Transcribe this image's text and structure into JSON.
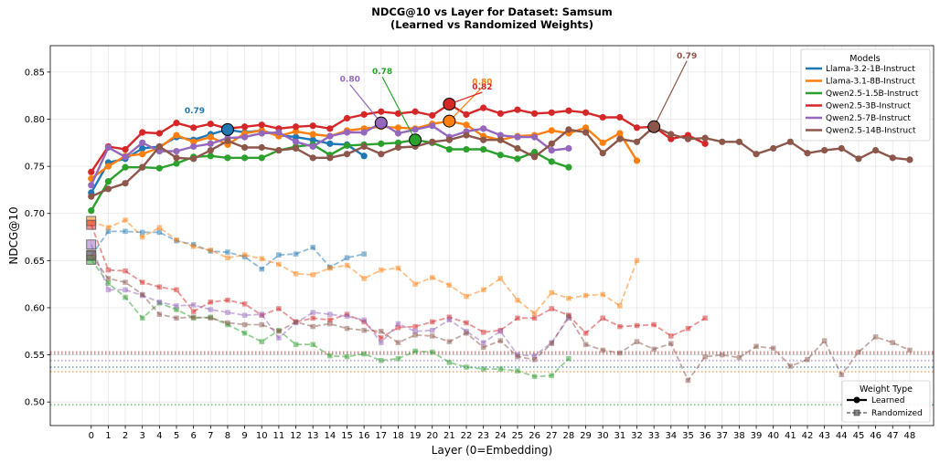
{
  "chart_data": {
    "type": "line",
    "title": "NDCG@10 vs Layer for Dataset: Samsum",
    "subtitle": "(Learned vs Randomized Weights)",
    "xlabel": "Layer (0=Embedding)",
    "ylabel": "NDCG@10",
    "xlim": [
      -2.4,
      49.4
    ],
    "ylim": [
      0.475,
      0.878
    ],
    "xticks": [
      0,
      1,
      2,
      3,
      4,
      5,
      6,
      7,
      8,
      9,
      10,
      11,
      12,
      13,
      14,
      15,
      16,
      17,
      18,
      19,
      20,
      21,
      22,
      23,
      24,
      25,
      26,
      27,
      28,
      29,
      30,
      31,
      32,
      33,
      34,
      35,
      36,
      37,
      38,
      39,
      40,
      41,
      42,
      43,
      44,
      45,
      46,
      47,
      48
    ],
    "yticks": [
      0.5,
      0.55,
      0.6,
      0.65,
      0.7,
      0.75,
      0.8,
      0.85
    ],
    "ytick_labels": [
      "0.50",
      "0.55",
      "0.60",
      "0.65",
      "0.70",
      "0.75",
      "0.80",
      "0.85"
    ],
    "grid": true,
    "legend_models": {
      "title": "Models",
      "placement": "top-right",
      "entries": [
        "Llama-3.2-1B-Instruct",
        "Llama-3.1-8B-Instruct",
        "Qwen2.5-1.5B-Instruct",
        "Qwen2.5-3B-Instruct",
        "Qwen2.5-7B-Instruct",
        "Qwen2.5-14B-Instruct"
      ]
    },
    "legend_weights": {
      "title": "Weight Type",
      "placement": "bottom-right",
      "entries": [
        "Learned",
        "Randomized"
      ]
    },
    "series": [
      {
        "name": "Llama-3.2-1B-Instruct",
        "color": "#1f77b4",
        "learned": [
          0.722,
          0.754,
          0.758,
          0.769,
          0.771,
          0.781,
          0.778,
          0.784,
          0.789,
          0.786,
          0.788,
          0.783,
          0.781,
          0.778,
          0.774,
          0.773,
          0.761
        ],
        "randomized": [
          0.655,
          0.681,
          0.681,
          0.68,
          0.68,
          0.671,
          0.667,
          0.66,
          0.659,
          0.654,
          0.641,
          0.656,
          0.657,
          0.664,
          0.643,
          0.653,
          0.657
        ],
        "baseline": 0.537,
        "peak": {
          "layer": 8,
          "value": 0.789,
          "label": "0.79"
        }
      },
      {
        "name": "Llama-3.1-8B-Instruct",
        "color": "#ff7f0e",
        "learned": [
          0.737,
          0.75,
          0.761,
          0.763,
          0.77,
          0.783,
          0.776,
          0.781,
          0.773,
          0.785,
          0.788,
          0.782,
          0.787,
          0.784,
          0.782,
          0.788,
          0.79,
          0.792,
          0.791,
          0.79,
          0.795,
          0.798,
          0.794,
          0.782,
          0.778,
          0.782,
          0.783,
          0.788,
          0.785,
          0.791,
          0.775,
          0.785,
          0.756
        ],
        "randomized": [
          0.692,
          0.685,
          0.693,
          0.675,
          0.685,
          0.672,
          0.665,
          0.661,
          0.653,
          0.656,
          0.652,
          0.646,
          0.636,
          0.635,
          0.642,
          0.645,
          0.631,
          0.64,
          0.642,
          0.625,
          0.632,
          0.624,
          0.612,
          0.619,
          0.631,
          0.608,
          0.594,
          0.616,
          0.61,
          0.613,
          0.614,
          0.602,
          0.65
        ],
        "baseline": 0.532,
        "peak": {
          "layer": 21,
          "value": 0.798,
          "label": "0.80"
        }
      },
      {
        "name": "Qwen2.5-1.5B-Instruct",
        "color": "#2ca02c",
        "learned": [
          0.703,
          0.734,
          0.749,
          0.749,
          0.748,
          0.753,
          0.76,
          0.761,
          0.759,
          0.759,
          0.759,
          0.767,
          0.771,
          0.773,
          0.762,
          0.772,
          0.773,
          0.774,
          0.775,
          0.778,
          0.775,
          0.768,
          0.768,
          0.768,
          0.762,
          0.758,
          0.765,
          0.755,
          0.749
        ],
        "randomized": [
          0.651,
          0.626,
          0.611,
          0.589,
          0.605,
          0.598,
          0.589,
          0.59,
          0.582,
          0.573,
          0.564,
          0.576,
          0.561,
          0.561,
          0.549,
          0.548,
          0.551,
          0.544,
          0.546,
          0.554,
          0.553,
          0.542,
          0.537,
          0.535,
          0.535,
          0.533,
          0.527,
          0.528,
          0.546
        ],
        "baseline": 0.497,
        "peak": {
          "layer": 19,
          "value": 0.778,
          "label": "0.78"
        }
      },
      {
        "name": "Qwen2.5-3B-Instruct",
        "color": "#d62728",
        "learned": [
          0.744,
          0.771,
          0.768,
          0.786,
          0.785,
          0.796,
          0.791,
          0.795,
          0.79,
          0.792,
          0.794,
          0.79,
          0.792,
          0.793,
          0.79,
          0.801,
          0.805,
          0.808,
          0.806,
          0.808,
          0.804,
          0.816,
          0.805,
          0.812,
          0.806,
          0.81,
          0.806,
          0.807,
          0.809,
          0.807,
          0.802,
          0.802,
          0.791,
          0.792,
          0.779,
          0.783,
          0.774
        ],
        "randomized": [
          0.688,
          0.64,
          0.639,
          0.627,
          0.622,
          0.619,
          0.596,
          0.606,
          0.608,
          0.604,
          0.592,
          0.599,
          0.585,
          0.589,
          0.587,
          0.593,
          0.585,
          0.568,
          0.579,
          0.58,
          0.585,
          0.59,
          0.584,
          0.574,
          0.576,
          0.589,
          0.589,
          0.599,
          0.592,
          0.573,
          0.589,
          0.58,
          0.581,
          0.582,
          0.57,
          0.578,
          0.589
        ],
        "baseline": 0.553,
        "peak": {
          "layer": 21,
          "value": 0.816,
          "label": "0.82"
        }
      },
      {
        "name": "Qwen2.5-7B-Instruct",
        "color": "#9467bd",
        "learned": [
          0.73,
          0.77,
          0.76,
          0.775,
          0.766,
          0.766,
          0.771,
          0.774,
          0.78,
          0.781,
          0.785,
          0.786,
          0.776,
          0.771,
          0.782,
          0.786,
          0.786,
          0.796,
          0.785,
          0.789,
          0.793,
          0.781,
          0.787,
          0.79,
          0.783,
          0.781,
          0.781,
          0.767,
          0.769
        ],
        "randomized": [
          0.667,
          0.619,
          0.619,
          0.613,
          0.606,
          0.602,
          0.603,
          0.598,
          0.595,
          0.592,
          0.593,
          0.568,
          0.584,
          0.595,
          0.593,
          0.591,
          0.587,
          0.563,
          0.583,
          0.575,
          0.576,
          0.587,
          0.575,
          0.563,
          0.575,
          0.55,
          0.549,
          0.563,
          0.589
        ],
        "baseline": 0.544,
        "peak": {
          "layer": 17,
          "value": 0.796,
          "label": "0.80"
        }
      },
      {
        "name": "Qwen2.5-14B-Instruct",
        "color": "#8c564b",
        "learned": [
          0.718,
          0.726,
          0.732,
          0.749,
          0.771,
          0.759,
          0.758,
          0.767,
          0.777,
          0.77,
          0.77,
          0.767,
          0.769,
          0.759,
          0.759,
          0.763,
          0.771,
          0.763,
          0.77,
          0.771,
          0.776,
          0.778,
          0.783,
          0.778,
          0.778,
          0.769,
          0.76,
          0.774,
          0.789,
          0.786,
          0.764,
          0.779,
          0.776,
          0.792,
          0.784,
          0.779,
          0.78,
          0.776,
          0.776,
          0.763,
          0.769,
          0.776,
          0.764,
          0.767,
          0.769,
          0.758,
          0.767,
          0.759,
          0.757
        ],
        "randomized": [
          0.656,
          0.631,
          0.627,
          0.614,
          0.593,
          0.589,
          0.59,
          0.589,
          0.584,
          0.582,
          0.582,
          0.575,
          0.585,
          0.58,
          0.583,
          0.578,
          0.576,
          0.575,
          0.563,
          0.571,
          0.57,
          0.564,
          0.573,
          0.558,
          0.565,
          0.548,
          0.545,
          0.562,
          0.591,
          0.561,
          0.555,
          0.552,
          0.564,
          0.556,
          0.562,
          0.523,
          0.548,
          0.55,
          0.547,
          0.559,
          0.557,
          0.538,
          0.545,
          0.565,
          0.529,
          0.553,
          0.569,
          0.563,
          0.555
        ],
        "baseline": 0.551,
        "peak": {
          "layer": 33,
          "value": 0.792,
          "label": "0.79"
        }
      }
    ]
  }
}
